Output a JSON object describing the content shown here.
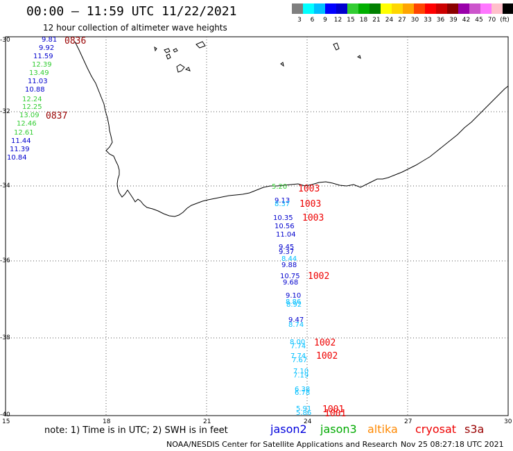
{
  "header": {
    "title": "00:00 – 11:59 UTC 11/22/2021",
    "subtitle": "12 hour collection of altimeter wave heights"
  },
  "legend": {
    "colors": [
      "#7f7f7f",
      "#00ffff",
      "#00bfff",
      "#0000ff",
      "#0000cd",
      "#32cd32",
      "#00b000",
      "#008000",
      "#ffff00",
      "#ffd700",
      "#ffa500",
      "#ff4500",
      "#ff0000",
      "#cc0000",
      "#8b0000",
      "#9900aa",
      "#cc55cc",
      "#ff77ff",
      "#ffc0cb",
      "#000000"
    ],
    "ticks": [
      "3",
      "6",
      "9",
      "12",
      "15",
      "18",
      "21",
      "24",
      "27",
      "30",
      "33",
      "36",
      "39",
      "42",
      "45",
      "70",
      "(ft)"
    ]
  },
  "axes": {
    "lat_labels": [
      "-30",
      "-32",
      "-34",
      "-36",
      "-38",
      "-40"
    ],
    "lon_labels": [
      "15",
      "18",
      "21",
      "24",
      "27",
      "30"
    ]
  },
  "satellites": [
    {
      "name": "jason2",
      "color": "#0000dd"
    },
    {
      "name": "jason3",
      "color": "#00aa00"
    },
    {
      "name": "altika",
      "color": "#ff8800"
    },
    {
      "name": "cryosat",
      "color": "#ee0000"
    },
    {
      "name": "s3a",
      "color": "#990000"
    }
  ],
  "footer": {
    "note": "note: 1) Time is in UTC; 2) SWH is in feet",
    "credit": "NOAA/NESDIS Center for Satellite Applications and Research",
    "timestamp": "Nov 25 08:27:18 UTC 2021"
  },
  "track_west": [
    {
      "v": "9.81",
      "c": "#0000cd"
    },
    {
      "v": "9.92",
      "c": "#0000cd"
    },
    {
      "v": "11.59",
      "c": "#0000cd"
    },
    {
      "v": "12.39",
      "c": "#32cd32"
    },
    {
      "v": "13.49",
      "c": "#32cd32"
    },
    {
      "v": "11.03",
      "c": "#0000cd"
    },
    {
      "v": "10.88",
      "c": "#0000cd"
    },
    {
      "v": "12.24",
      "c": "#32cd32"
    },
    {
      "v": "12.25",
      "c": "#32cd32"
    },
    {
      "v": "13.09",
      "c": "#32cd32"
    },
    {
      "v": "12.46",
      "c": "#32cd32"
    },
    {
      "v": "12.61",
      "c": "#32cd32"
    },
    {
      "v": "11.44",
      "c": "#0000cd"
    },
    {
      "v": "11.39",
      "c": "#0000cd"
    },
    {
      "v": "10.84",
      "c": "#0000cd"
    }
  ],
  "track_south": [
    {
      "v": "9.13",
      "c": "#0000cd"
    },
    {
      "v": "8.37",
      "c": "#00bfff"
    },
    {
      "v": "10.35",
      "c": "#0000cd"
    },
    {
      "v": "10.56",
      "c": "#0000cd"
    },
    {
      "v": "11.04",
      "c": "#0000cd"
    },
    {
      "v": "9.45",
      "c": "#0000cd"
    },
    {
      "v": "9.37",
      "c": "#0000cd"
    },
    {
      "v": "8.44",
      "c": "#00bfff"
    },
    {
      "v": "9.88",
      "c": "#0000cd"
    },
    {
      "v": "10.75",
      "c": "#0000cd"
    },
    {
      "v": "9.68",
      "c": "#0000cd"
    },
    {
      "v": "9.10",
      "c": "#0000cd"
    },
    {
      "v": "8.86",
      "c": "#00bfff"
    },
    {
      "v": "8.92",
      "c": "#00bfff"
    },
    {
      "v": "9.47",
      "c": "#0000cd"
    },
    {
      "v": "8.74",
      "c": "#00bfff"
    },
    {
      "v": "8.00",
      "c": "#00bfff"
    },
    {
      "v": "7.74",
      "c": "#00bfff"
    },
    {
      "v": "7.74",
      "c": "#00bfff"
    },
    {
      "v": "7.67",
      "c": "#00bfff"
    },
    {
      "v": "7.10",
      "c": "#00bfff"
    },
    {
      "v": "7.19",
      "c": "#00bfff"
    },
    {
      "v": "6.38",
      "c": "#00bfff"
    },
    {
      "v": "6.78",
      "c": "#00bfff"
    },
    {
      "v": "5.91",
      "c": "#00bfff"
    },
    {
      "v": "5.86",
      "c": "#00bfff"
    }
  ],
  "pressure_labels": [
    {
      "v": "0836",
      "c": "#990000"
    },
    {
      "v": "0837",
      "c": "#990000"
    },
    {
      "v": "1003",
      "c": "#ee0000"
    },
    {
      "v": "1003",
      "c": "#ee0000"
    },
    {
      "v": "1003",
      "c": "#ee0000"
    },
    {
      "v": "1002",
      "c": "#ee0000"
    },
    {
      "v": "1002",
      "c": "#ee0000"
    },
    {
      "v": "1002",
      "c": "#ee0000"
    },
    {
      "v": "1001",
      "c": "#ee0000"
    },
    {
      "v": "1001",
      "c": "#ee0000"
    }
  ],
  "coast_label": {
    "v": "5.20",
    "c": "#32cd32"
  }
}
